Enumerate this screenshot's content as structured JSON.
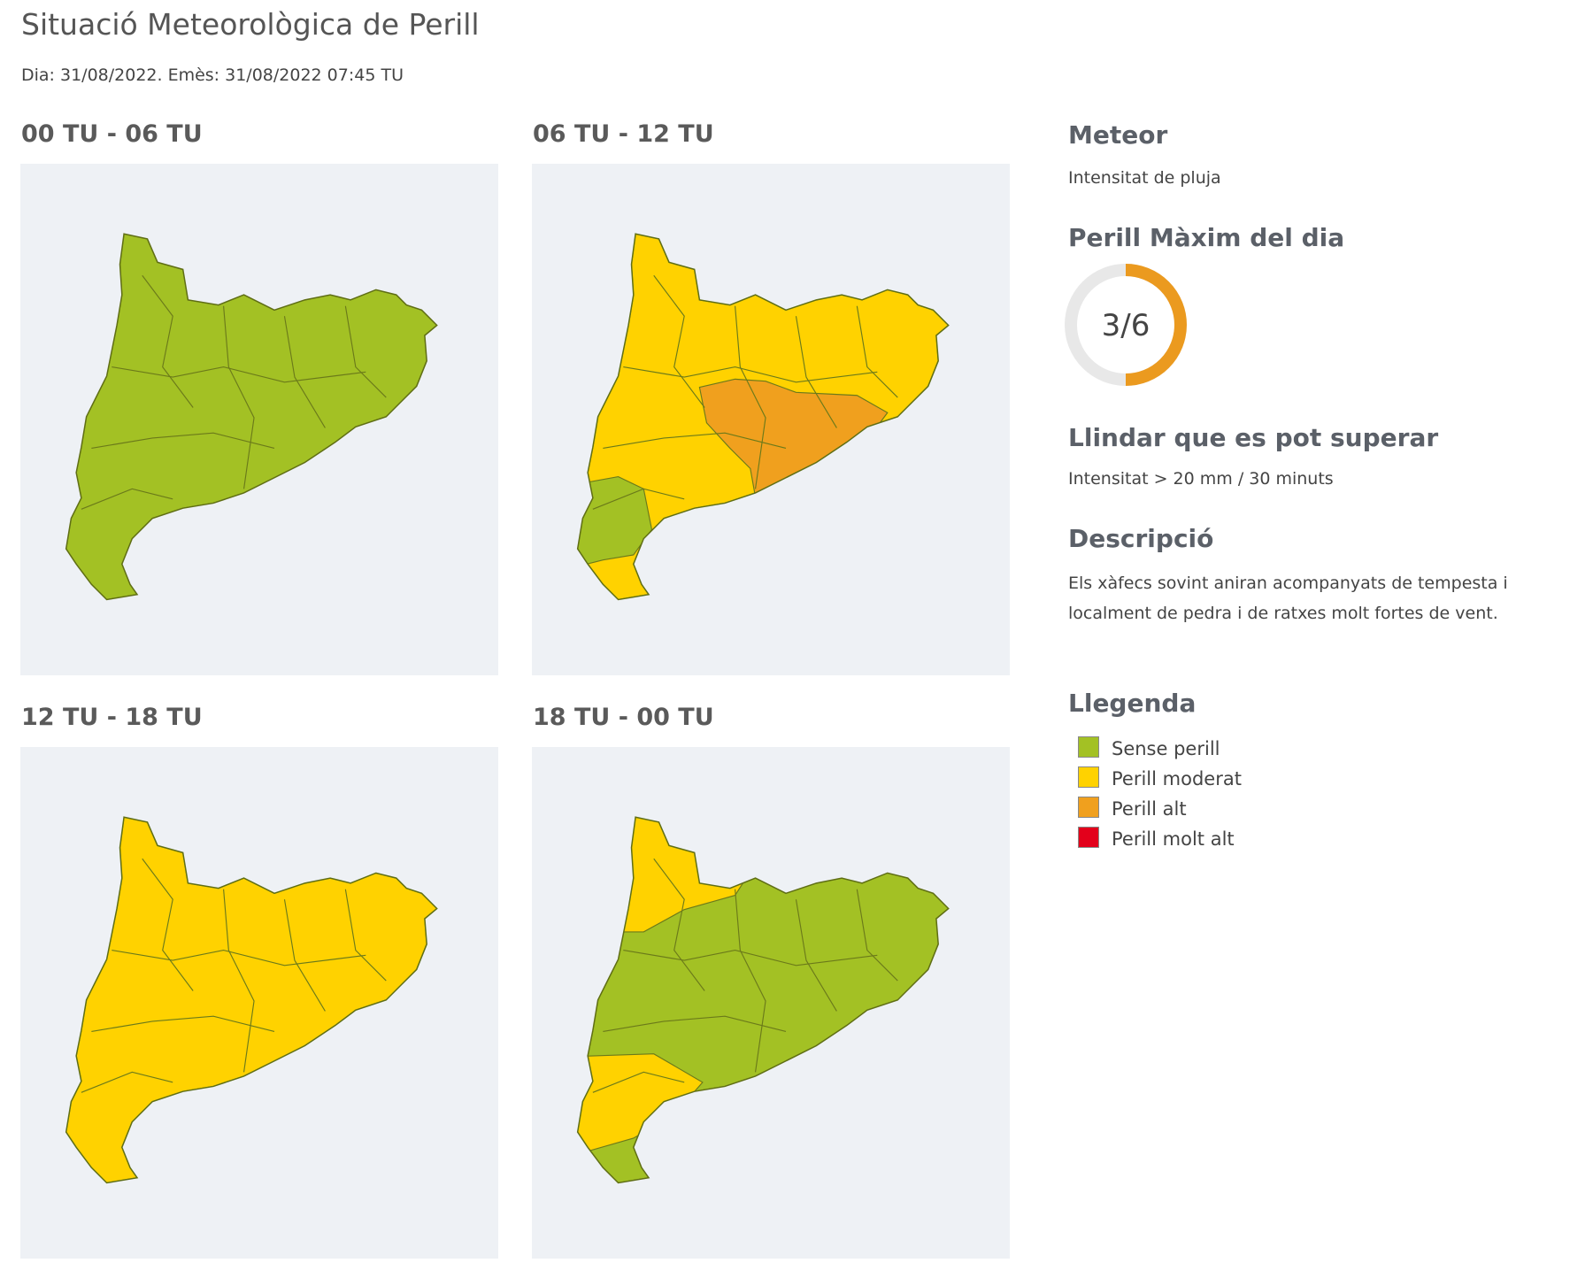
{
  "header": {
    "title": "Situació Meteorològica de Perill",
    "subtitle": "Dia: 31/08/2022. Emès: 31/08/2022 07:45 TU"
  },
  "panels": [
    {
      "label": "00 TU - 06 TU"
    },
    {
      "label": "06 TU - 12 TU"
    },
    {
      "label": "12 TU - 18 TU"
    },
    {
      "label": "18 TU - 00 TU"
    }
  ],
  "sidebar": {
    "meteor_heading": "Meteor",
    "meteor": "Intensitat de pluja",
    "max_heading": "Perill Màxim del dia",
    "max_danger": {
      "value": 3,
      "max": 6,
      "label": "3/6"
    },
    "threshold_heading": "Llindar que es pot superar",
    "threshold": "Intensitat > 20 mm / 30 minuts",
    "description_heading": "Descripció",
    "description": "Els xàfecs sovint aniran acompanyats de tempesta i localment de pedra i de ratxes molt fortes de vent.",
    "legend_heading": "Llegenda",
    "legend": [
      {
        "label": "Sense perill",
        "color": "#a3c124"
      },
      {
        "label": "Perill moderat",
        "color": "#ffd200"
      },
      {
        "label": "Perill alt",
        "color": "#f0a01e"
      },
      {
        "label": "Perill molt alt",
        "color": "#e3001b"
      }
    ]
  }
}
